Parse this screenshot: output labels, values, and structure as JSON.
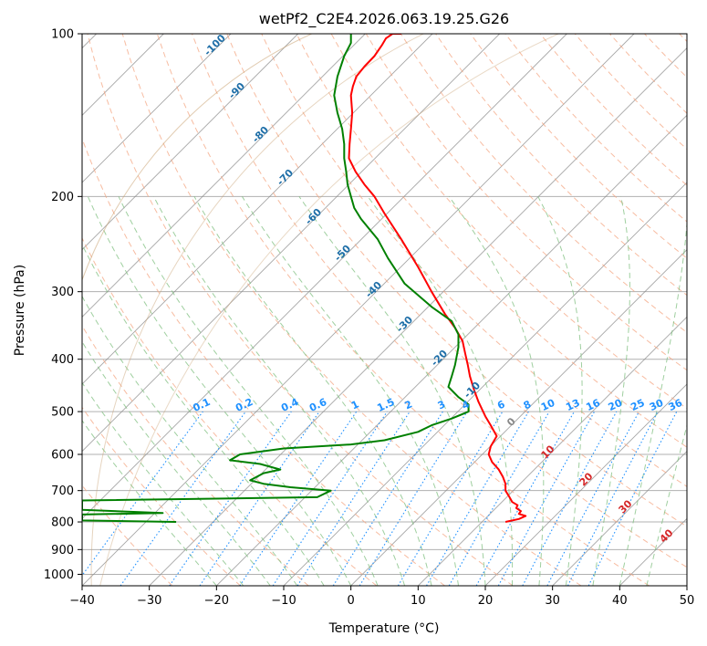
{
  "chart_data": {
    "type": "line",
    "title": "wetPf2_C2E4.2026.063.19.25.G26",
    "xlabel": "Temperature (°C)",
    "ylabel": "Pressure (hPa)",
    "xlim": [
      -40,
      50
    ],
    "ylim": [
      1050,
      100
    ],
    "y_scale": "log",
    "grid": true,
    "x_ticks": [
      "−40",
      "−30",
      "−20",
      "−10",
      "0",
      "10",
      "20",
      "30",
      "40",
      "50"
    ],
    "y_ticks": [
      "100",
      "200",
      "300",
      "400",
      "500",
      "600",
      "700",
      "800",
      "900",
      "1000"
    ],
    "series": [
      {
        "color": "#ff0000",
        "x": [
          23.0,
          25.0,
          26.0,
          25.0,
          25.3,
          24.6,
          24.8,
          24.0,
          23.6,
          23.0,
          23.0,
          22.6,
          22.0,
          21.0,
          20.5,
          20.8,
          21.7,
          20.8,
          20.0,
          19.0,
          18.3,
          17.7,
          17.4,
          17.0,
          16.6,
          15.5,
          14.0,
          12.0,
          10.0,
          7.5,
          5.0,
          3.5,
          2.0,
          0.7,
          -0.3,
          -0.2,
          0.0,
          0.2,
          0.0,
          0.3,
          0.8,
          2.0,
          3.5,
          4.6,
          5.2,
          6.2,
          6.4,
          6.5,
          7.5
        ],
        "y": [
          800,
          790,
          780,
          773,
          764,
          754,
          745,
          735,
          720,
          700,
          680,
          660,
          640,
          620,
          600,
          580,
          555,
          530,
          510,
          480,
          455,
          430,
          410,
          390,
          370,
          350,
          330,
          300,
          270,
          240,
          215,
          200,
          190,
          180,
          170,
          160,
          150,
          140,
          130,
          125,
          120,
          115,
          110,
          105,
          102,
          100,
          100,
          100,
          100
        ]
      },
      {
        "color": "#008000",
        "x": [
          -26.0,
          -40.0,
          -40.0,
          -28.0,
          -40.0,
          -40.0,
          -5.0,
          -3.0,
          -9.0,
          -13.0,
          -15.0,
          -13.0,
          -10.5,
          -13.5,
          -18.0,
          -16.5,
          -10.0,
          0.0,
          5.0,
          10.0,
          12.0,
          15.0,
          17.5,
          17.5,
          16.0,
          14.5,
          15.0,
          15.5,
          16.0,
          16.0,
          15.0,
          12.0,
          8.0,
          5.5,
          4.0,
          1.5,
          0.5,
          0.0,
          -0.5,
          -0.7,
          -1.0,
          -1.0,
          -1.3,
          -2.0,
          -2.5,
          -2.0,
          -1.0,
          0.0,
          0.0
        ],
        "y": [
          800,
          795,
          775,
          770,
          760,
          730,
          720,
          700,
          690,
          680,
          670,
          650,
          640,
          625,
          615,
          600,
          585,
          575,
          565,
          545,
          530,
          515,
          500,
          485,
          470,
          450,
          430,
          410,
          380,
          360,
          340,
          320,
          290,
          260,
          240,
          220,
          210,
          200,
          190,
          180,
          170,
          160,
          150,
          140,
          130,
          120,
          110,
          104,
          100
        ]
      }
    ],
    "dry_adiabat_labels": [
      "-100",
      "-90",
      "-80",
      "-70",
      "-60",
      "-50",
      "-40",
      "-30",
      "-20",
      "-10"
    ],
    "mixing_ratio_labels": [
      "0.1",
      "0.2",
      "0.4",
      "0.6",
      "1",
      "1.5",
      "2",
      "3",
      "4",
      "6",
      "8",
      "10",
      "13",
      "16",
      "20",
      "25",
      "30",
      "36"
    ],
    "moist_adiabat_labels": [
      "0",
      "10",
      "20",
      "30",
      "40"
    ],
    "colors": {
      "temperature": "#ff0000",
      "dewpoint": "#008000",
      "dry_adiabat": "#f4a582",
      "moist_adiabat": "#7fbf7f",
      "mixing_ratio": "#1e90ff",
      "isotherm": "#888888",
      "dry_adiabat_label": "#1f6fa8",
      "moist_adiabat_label": "#d62728"
    }
  }
}
